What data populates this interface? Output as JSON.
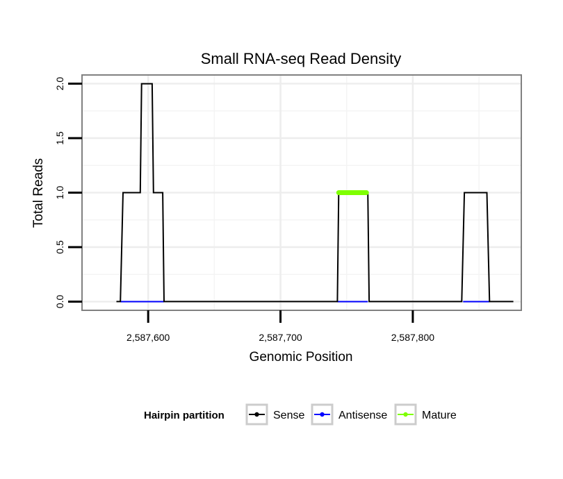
{
  "chart_data": {
    "type": "line",
    "title": "Small RNA-seq Read Density",
    "xlabel": "Genomic Position",
    "ylabel": "Total Reads",
    "xlim": [
      2587550,
      2587882
    ],
    "ylim": [
      -0.08,
      2.08
    ],
    "x_ticks": [
      2587600,
      2587700,
      2587800
    ],
    "x_tick_labels": [
      "2,587,600",
      "2,587,700",
      "2,587,800"
    ],
    "y_ticks": [
      0.0,
      0.5,
      1.0,
      1.5,
      2.0
    ],
    "y_tick_labels": [
      "0.0",
      "0.5",
      "1.0",
      "1.5",
      "2.0"
    ],
    "grid": true,
    "legend": {
      "title": "Hairpin partition",
      "position": "bottom",
      "entries": [
        {
          "label": "Sense",
          "color": "#000000"
        },
        {
          "label": "Antisense",
          "color": "#0000ff"
        },
        {
          "label": "Mature",
          "color": "#7fff00"
        }
      ]
    },
    "series": [
      {
        "name": "Sense",
        "color": "#000000",
        "x": [
          2587576,
          2587579,
          2587581,
          2587594,
          2587595,
          2587603,
          2587604,
          2587611,
          2587612,
          2587743,
          2587744,
          2587766,
          2587767,
          2587837,
          2587839,
          2587856,
          2587858,
          2587876
        ],
        "y": [
          0,
          0,
          1,
          1,
          2,
          2,
          1,
          1,
          0,
          0,
          1,
          1,
          0,
          0,
          1,
          1,
          0,
          0
        ]
      },
      {
        "name": "Antisense",
        "color": "#0000ff",
        "segments": [
          [
            2587579,
            2587612
          ],
          [
            2587743,
            2587766
          ],
          [
            2587838,
            2587858
          ]
        ],
        "y": 0
      },
      {
        "name": "Mature",
        "color": "#7fff00",
        "x": [
          2587744,
          2587765
        ],
        "y": [
          1,
          1
        ]
      }
    ]
  }
}
